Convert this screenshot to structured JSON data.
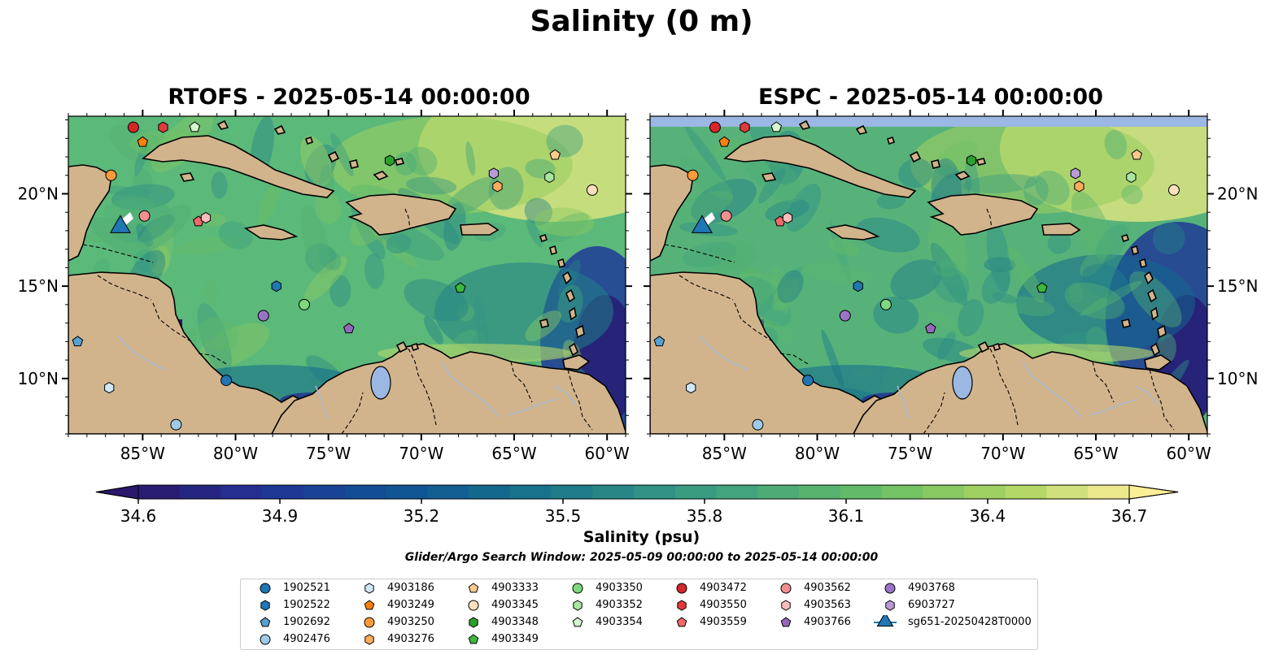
{
  "figure": {
    "title": "Salinity (0 m)",
    "search_window": "Glider/Argo Search Window: 2025-05-09 00:00:00 to 2025-05-14 00:00:00"
  },
  "panels": [
    {
      "title": "RTOFS - 2025-05-14 00:00:00"
    },
    {
      "title": "ESPC - 2025-05-14 00:00:00"
    }
  ],
  "map": {
    "extent": {
      "lon_min": -89,
      "lon_max": -59,
      "lat_min": 7,
      "lat_max": 24.2
    },
    "lon_ticks": [
      -85,
      -80,
      -75,
      -70,
      -65,
      -60
    ],
    "lon_tick_labels": [
      "85°W",
      "80°W",
      "75°W",
      "70°W",
      "65°W",
      "60°W"
    ],
    "lat_ticks": [
      10,
      15,
      20
    ],
    "lat_tick_labels": [
      "10°N",
      "15°N",
      "20°N"
    ],
    "land_color": "#d2b48c",
    "lake_color": "#9bb7e3"
  },
  "colorbar": {
    "label": "Salinity (psu)",
    "colormap": "haline",
    "vmin": 34.6,
    "vmax": 36.7,
    "extend": "both",
    "ticks": [
      34.6,
      34.9,
      35.2,
      35.5,
      35.8,
      36.1,
      36.4,
      36.7
    ],
    "tick_labels": [
      "34.6",
      "34.9",
      "35.2",
      "35.5",
      "35.8",
      "36.1",
      "36.4",
      "36.7"
    ]
  },
  "legend": {
    "placement": "lower-center",
    "columns": [
      [
        {
          "label": "1902521",
          "marker": "circle",
          "color": "#1f77b4"
        },
        {
          "label": "1902522",
          "marker": "hexagon",
          "color": "#1f77b4"
        },
        {
          "label": "1902692",
          "marker": "pentagon",
          "color": "#5aa0d0"
        },
        {
          "label": "4902476",
          "marker": "circle",
          "color": "#9ecae9"
        }
      ],
      [
        {
          "label": "4903186",
          "marker": "hexagon",
          "color": "#cfe8f7"
        },
        {
          "label": "4903249",
          "marker": "pentagon",
          "color": "#ff7f0e"
        },
        {
          "label": "4903250",
          "marker": "circle",
          "color": "#ff9a3c"
        },
        {
          "label": "4903276",
          "marker": "hexagon",
          "color": "#ffab5e"
        }
      ],
      [
        {
          "label": "4903333",
          "marker": "pentagon",
          "color": "#ffc98e"
        },
        {
          "label": "4903345",
          "marker": "circle",
          "color": "#ffe0bd"
        },
        {
          "label": "4903348",
          "marker": "hexagon",
          "color": "#2ca02c"
        },
        {
          "label": "4903349",
          "marker": "pentagon",
          "color": "#3cb83c"
        }
      ],
      [
        {
          "label": "4903350",
          "marker": "circle",
          "color": "#7fd87f"
        },
        {
          "label": "4903352",
          "marker": "hexagon",
          "color": "#a8e6a0"
        },
        {
          "label": "4903354",
          "marker": "pentagon",
          "color": "#d6f5cf"
        }
      ],
      [
        {
          "label": "4903472",
          "marker": "circle",
          "color": "#d62728"
        },
        {
          "label": "4903550",
          "marker": "hexagon",
          "color": "#e03a3a"
        },
        {
          "label": "4903559",
          "marker": "pentagon",
          "color": "#f0686a"
        }
      ],
      [
        {
          "label": "4903562",
          "marker": "circle",
          "color": "#f28e8e"
        },
        {
          "label": "4903563",
          "marker": "hexagon",
          "color": "#fbbcbc"
        },
        {
          "label": "4903766",
          "marker": "pentagon",
          "color": "#9467bd"
        }
      ],
      [
        {
          "label": "4903768",
          "marker": "circle",
          "color": "#9b73c6"
        },
        {
          "label": "6903727",
          "marker": "hexagon",
          "color": "#b99ad8"
        },
        {
          "label": "sg651-20250428T0000",
          "marker": "triangle",
          "color": "#1f77b4"
        }
      ]
    ]
  },
  "observations": [
    {
      "id": "1902521",
      "lon": -80.5,
      "lat": 9.9
    },
    {
      "id": "1902522",
      "lon": -77.8,
      "lat": 15.0
    },
    {
      "id": "1902692",
      "lon": -88.5,
      "lat": 12.0
    },
    {
      "id": "4902476",
      "lon": -83.2,
      "lat": 7.5
    },
    {
      "id": "4903186",
      "lon": -86.8,
      "lat": 9.5
    },
    {
      "id": "4903249",
      "lon": -85.0,
      "lat": 22.8
    },
    {
      "id": "4903250",
      "lon": -86.7,
      "lat": 21.0
    },
    {
      "id": "4903276",
      "lon": -65.9,
      "lat": 20.4
    },
    {
      "id": "4903333",
      "lon": -62.8,
      "lat": 22.1
    },
    {
      "id": "4903345",
      "lon": -60.8,
      "lat": 20.2
    },
    {
      "id": "4903348",
      "lon": -71.7,
      "lat": 21.8
    },
    {
      "id": "4903349",
      "lon": -67.9,
      "lat": 14.9
    },
    {
      "id": "4903350",
      "lon": -76.3,
      "lat": 14.0
    },
    {
      "id": "4903352",
      "lon": -63.1,
      "lat": 20.9
    },
    {
      "id": "4903354",
      "lon": -82.2,
      "lat": 23.6
    },
    {
      "id": "4903472",
      "lon": -85.5,
      "lat": 23.6
    },
    {
      "id": "4903550",
      "lon": -83.9,
      "lat": 23.6
    },
    {
      "id": "4903559",
      "lon": -82.0,
      "lat": 18.5
    },
    {
      "id": "4903562",
      "lon": -84.9,
      "lat": 18.8
    },
    {
      "id": "4903563",
      "lon": -81.6,
      "lat": 18.7
    },
    {
      "id": "4903766",
      "lon": -73.9,
      "lat": 12.7
    },
    {
      "id": "4903768",
      "lon": -78.5,
      "lat": 13.4
    },
    {
      "id": "6903727",
      "lon": -66.1,
      "lat": 21.1
    },
    {
      "id": "sg651-20250428T0000",
      "lon": -86.2,
      "lat": 18.2
    }
  ]
}
